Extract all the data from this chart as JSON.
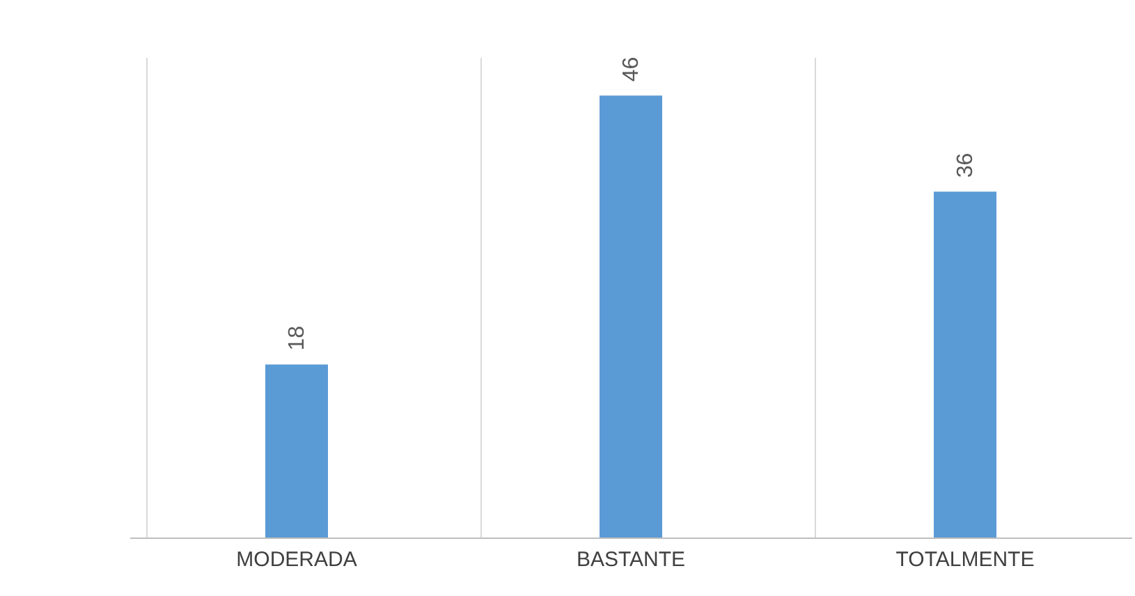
{
  "chart_data": {
    "type": "bar",
    "categories": [
      "MODERADA",
      "BASTANTE",
      "TOTALMENTE"
    ],
    "values": [
      18,
      46,
      36
    ],
    "color": "#5b9bd5",
    "tick_labels": "x",
    "data_labels": true,
    "grid": "x"
  }
}
